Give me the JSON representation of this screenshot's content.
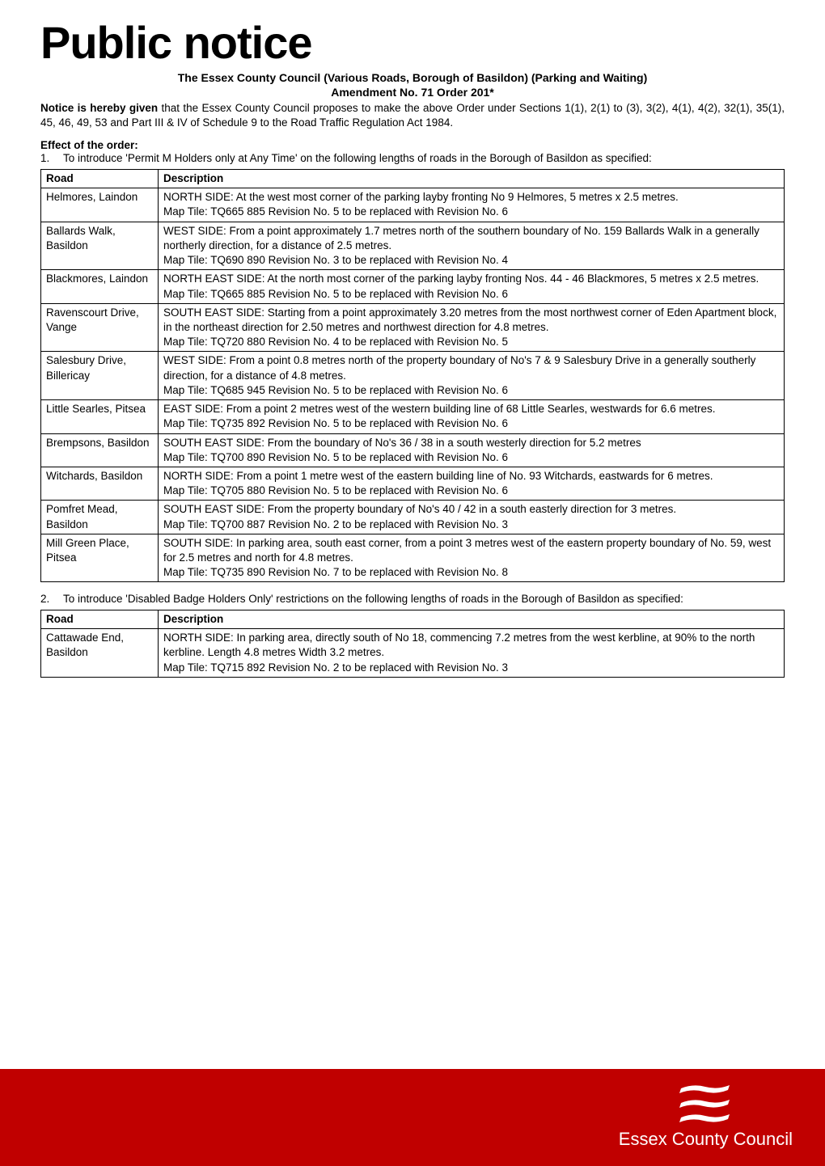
{
  "header": {
    "main_title": "Public notice",
    "subtitle_line1": "The Essex County Council (Various Roads, Borough of Basildon) (Parking and Waiting)",
    "subtitle_line2": "Amendment No. 71 Order 201*"
  },
  "notice": {
    "lead_bold": "Notice is hereby given",
    "body": " that the Essex County Council proposes to make the above Order under Sections 1(1), 2(1) to (3), 3(2), 4(1), 4(2), 32(1), 35(1), 45, 46, 49, 53 and Part III & IV of Schedule 9 to the Road Traffic Regulation Act 1984."
  },
  "effect_heading": "Effect of the order:",
  "item1": {
    "num": "1.",
    "text": "To introduce 'Permit M Holders only at Any Time' on the following lengths of roads in the Borough of Basildon as specified:"
  },
  "table1": {
    "headers": {
      "road": "Road",
      "desc": "Description"
    },
    "rows": [
      {
        "road": "Helmores, Laindon",
        "desc": "NORTH SIDE: At the west most corner of the parking layby fronting No 9 Helmores, 5 metres x 2.5 metres.\nMap Tile: TQ665 885 Revision No. 5 to be replaced with Revision No. 6"
      },
      {
        "road": "Ballards Walk, Basildon",
        "desc": "WEST SIDE: From a point approximately 1.7 metres north of the southern boundary of No. 159 Ballards Walk in a generally northerly direction, for a distance of 2.5 metres.\nMap Tile: TQ690 890 Revision No. 3 to be replaced with Revision No. 4"
      },
      {
        "road": "Blackmores, Laindon",
        "desc": "NORTH EAST SIDE: At the north most corner of the parking layby fronting Nos. 44 - 46 Blackmores, 5 metres x 2.5 metres.\nMap Tile: TQ665 885 Revision No. 5 to be replaced with Revision No. 6"
      },
      {
        "road": "Ravenscourt Drive, Vange",
        "desc": "SOUTH EAST SIDE: Starting from a point approximately 3.20 metres from the most northwest corner of Eden Apartment block, in the northeast direction for 2.50 metres and northwest direction for 4.8 metres.\nMap Tile: TQ720 880 Revision No. 4 to be replaced with Revision No. 5"
      },
      {
        "road": "Salesbury Drive, Billericay",
        "desc": "WEST SIDE: From a point 0.8 metres north of the property boundary of No's 7 & 9 Salesbury Drive in a generally southerly direction, for a distance of 4.8 metres.\nMap Tile: TQ685 945 Revision No. 5 to be replaced with Revision No. 6"
      },
      {
        "road": "Little Searles, Pitsea",
        "desc": "EAST SIDE: From a point 2 metres west of the western building line of 68 Little Searles, westwards for 6.6 metres.\nMap Tile: TQ735 892 Revision No. 5 to be replaced with Revision No. 6"
      },
      {
        "road": "Brempsons, Basildon",
        "desc": "SOUTH EAST SIDE: From the boundary of No's 36 / 38 in a south westerly direction for 5.2 metres\nMap Tile: TQ700 890 Revision No. 5 to be replaced with Revision No. 6"
      },
      {
        "road": "Witchards, Basildon",
        "desc": "NORTH SIDE: From a point 1 metre west of the eastern building line of No. 93 Witchards, eastwards for 6 metres.\nMap Tile: TQ705 880 Revision No. 5 to be replaced with Revision No. 6"
      },
      {
        "road": "Pomfret Mead, Basildon",
        "desc": "SOUTH EAST SIDE: From the property boundary of No's 40 / 42 in a south easterly direction for 3 metres.\nMap Tile: TQ700 887 Revision No. 2 to be replaced with Revision No. 3"
      },
      {
        "road": "Mill Green Place, Pitsea",
        "desc": "SOUTH SIDE: In parking area, south east corner, from a point 3 metres west of the eastern property boundary of No. 59, west for 2.5 metres and north for 4.8 metres.\nMap Tile: TQ735 890 Revision No. 7 to be replaced with Revision No. 8"
      }
    ]
  },
  "item2": {
    "num": "2.",
    "text": "To introduce 'Disabled Badge Holders Only' restrictions on the following lengths of roads in the Borough of Basildon as specified:"
  },
  "table2": {
    "headers": {
      "road": "Road",
      "desc": "Description"
    },
    "rows": [
      {
        "road": "Cattawade End, Basildon",
        "desc": "NORTH SIDE: In parking area, directly south of No 18, commencing 7.2 metres from the west kerbline, at 90% to the north kerbline.  Length 4.8 metres Width 3.2 metres.\nMap Tile: TQ715 892 Revision No. 2 to be replaced with Revision No. 3"
      }
    ]
  },
  "footer": {
    "logo_text": "Essex County Council",
    "logo_color": "#c00000",
    "bar_color": "#c00000",
    "seax_color": "#c00000"
  }
}
